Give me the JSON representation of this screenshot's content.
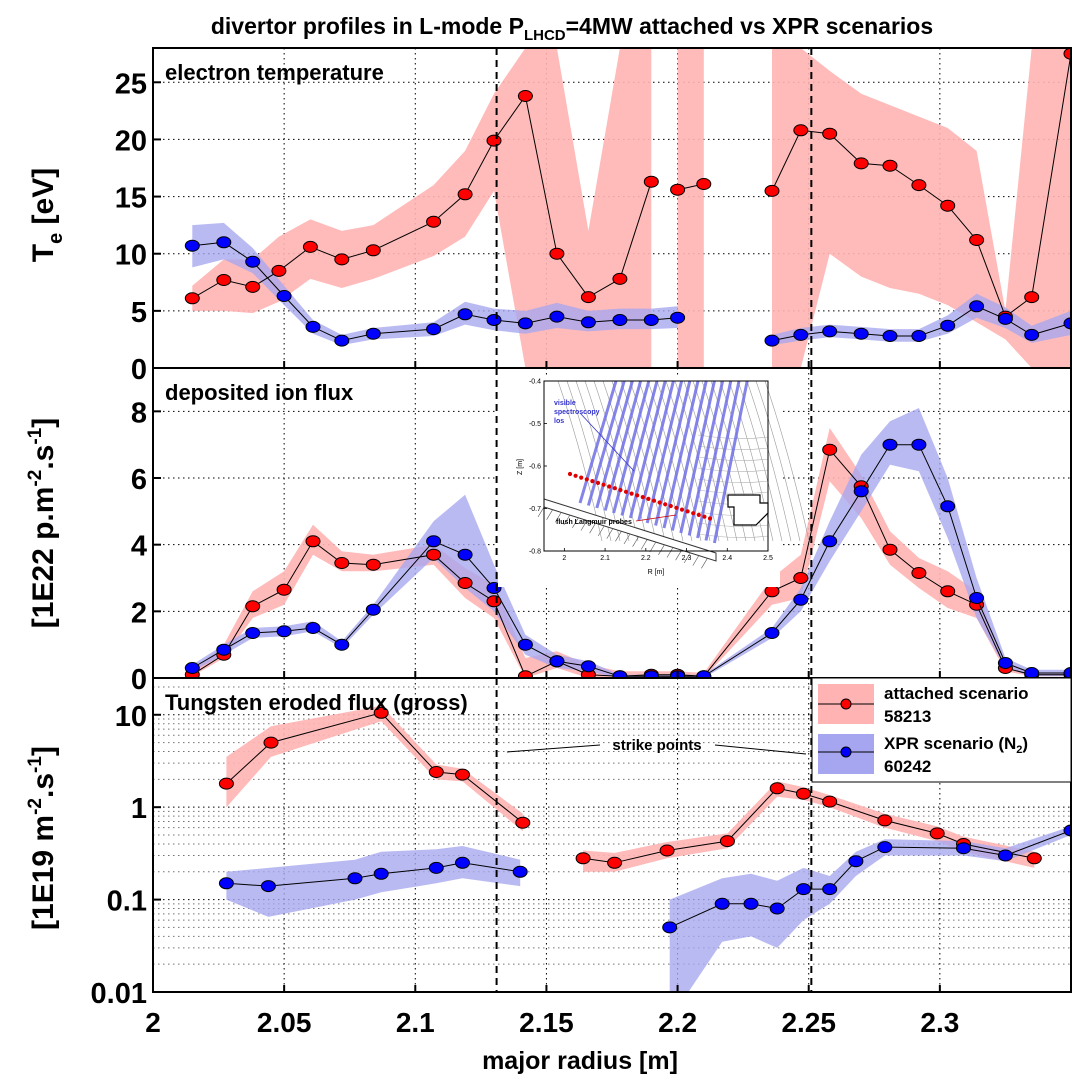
{
  "chart_data": {
    "type": "line",
    "title": {
      "pre": "divertor profiles in L-mode P",
      "sub": "LHCD",
      "post": "=4MW  attached vs XPR scenarios"
    },
    "xlabel": "major radius [m]",
    "xlim": [
      2.0,
      2.35
    ],
    "xticks": [
      2,
      2.05,
      2.1,
      2.15,
      2.2,
      2.25,
      2.3
    ],
    "xtick_labels": [
      "2",
      "2.05",
      "2.1",
      "2.15",
      "2.2",
      "2.25",
      "2.3"
    ],
    "strike_points": [
      2.131,
      2.251
    ],
    "colors": {
      "attached": "#ff0000",
      "attached_band": "#ffb3b3",
      "xpr": "#0000ff",
      "xpr_band": "#a6a6f0"
    },
    "legend": {
      "placement": "top-right of bottom panel",
      "entries": [
        {
          "label_line1": "attached scenario",
          "label_line2": "58213"
        },
        {
          "label_line1_pre": "XPR scenario (N",
          "label_line1_sub": "2",
          "label_line1_post": ")",
          "label_line2": "60242"
        }
      ]
    },
    "panels": [
      {
        "id": "te",
        "label": "electron temperature",
        "ylabel": {
          "main": "T",
          "sub": "e",
          "rest": " [eV]"
        },
        "scale": "linear",
        "ylim": [
          0,
          28
        ],
        "yticks": [
          0,
          5,
          10,
          15,
          20,
          25
        ],
        "ytick_labels": [
          "0",
          "5",
          "10",
          "15",
          "20",
          "25"
        ],
        "series": [
          {
            "key": "attached",
            "segments": [
              {
                "x": [
                  2.015,
                  2.027,
                  2.038,
                  2.048,
                  2.06,
                  2.072,
                  2.084,
                  2.107,
                  2.119,
                  2.13,
                  2.142,
                  2.154,
                  2.166,
                  2.178,
                  2.19
                ],
                "y": [
                  6.1,
                  7.7,
                  7.1,
                  8.5,
                  10.6,
                  9.5,
                  10.3,
                  12.8,
                  15.2,
                  19.9,
                  23.8,
                  10.0,
                  6.2,
                  7.8,
                  16.3
                ],
                "lo": [
                  5.0,
                  5.0,
                  4.8,
                  5.8,
                  7.8,
                  7.0,
                  7.8,
                  9.8,
                  11.5,
                  15.5,
                  0,
                  0,
                  0,
                  0,
                  0
                ],
                "hi": [
                  7.2,
                  9.5,
                  9.5,
                  11.5,
                  13.0,
                  12.0,
                  12.5,
                  16.0,
                  19.0,
                  24.0,
                  28,
                  28,
                  12,
                  28,
                  28
                ]
              },
              {
                "x": [
                  2.2,
                  2.21
                ],
                "y": [
                  15.6,
                  16.1
                ],
                "lo": [
                  0,
                  0
                ],
                "hi": [
                  28,
                  28
                ]
              },
              {
                "x": [
                  2.236,
                  2.247,
                  2.258,
                  2.27,
                  2.281,
                  2.292,
                  2.303,
                  2.314,
                  2.325,
                  2.335,
                  2.35
                ],
                "y": [
                  15.5,
                  20.8,
                  20.5,
                  17.9,
                  17.7,
                  16.0,
                  14.2,
                  11.2,
                  4.5,
                  6.2,
                  27.5
                ],
                "lo": [
                  0,
                  0,
                  10.0,
                  8.0,
                  7.0,
                  6.5,
                  5.5,
                  4.0,
                  2.5,
                  0,
                  0
                ],
                "hi": [
                  28,
                  28,
                  26.0,
                  24.0,
                  23.0,
                  22.0,
                  21.0,
                  19.0,
                  5.0,
                  28,
                  28
                ]
              }
            ]
          },
          {
            "key": "xpr",
            "segments": [
              {
                "x": [
                  2.015,
                  2.027,
                  2.038,
                  2.05,
                  2.061,
                  2.072,
                  2.084,
                  2.107,
                  2.119,
                  2.13,
                  2.142,
                  2.154,
                  2.166,
                  2.178,
                  2.19,
                  2.2
                ],
                "y": [
                  10.7,
                  11.0,
                  9.3,
                  6.3,
                  3.6,
                  2.4,
                  3.0,
                  3.4,
                  4.7,
                  4.2,
                  3.9,
                  4.5,
                  4.0,
                  4.2,
                  4.2,
                  4.4
                ],
                "lo": [
                  8.8,
                  9.5,
                  8.3,
                  5.5,
                  3.0,
                  2.0,
                  2.5,
                  2.8,
                  3.8,
                  3.3,
                  3.0,
                  3.5,
                  3.2,
                  3.4,
                  3.4,
                  3.5
                ],
                "hi": [
                  12.5,
                  12.7,
                  10.5,
                  7.2,
                  4.2,
                  2.9,
                  3.5,
                  4.0,
                  5.8,
                  5.2,
                  5.0,
                  5.7,
                  5.0,
                  5.2,
                  5.2,
                  5.4
                ]
              },
              {
                "x": [
                  2.236,
                  2.247,
                  2.258,
                  2.27,
                  2.281,
                  2.292,
                  2.303,
                  2.314,
                  2.325,
                  2.335,
                  2.35
                ],
                "y": [
                  2.4,
                  2.9,
                  3.2,
                  3.0,
                  2.8,
                  2.8,
                  3.7,
                  5.4,
                  4.3,
                  2.9,
                  3.9
                ],
                "lo": [
                  2.0,
                  2.4,
                  2.7,
                  2.5,
                  2.3,
                  2.3,
                  3.0,
                  4.4,
                  3.5,
                  2.2,
                  2.9
                ],
                "hi": [
                  2.9,
                  3.5,
                  3.8,
                  3.6,
                  3.4,
                  3.4,
                  4.6,
                  6.5,
                  5.3,
                  3.7,
                  5.0
                ]
              }
            ]
          }
        ]
      },
      {
        "id": "flux",
        "label": "deposited ion flux",
        "ylabel": {
          "pre": "[1E22 p.m",
          "sup1": "-2",
          "mid": ".s",
          "sup2": "-1",
          "post": "]"
        },
        "scale": "linear",
        "ylim": [
          0,
          9.3
        ],
        "yticks": [
          0,
          2,
          4,
          6,
          8
        ],
        "ytick_labels": [
          "0",
          "2",
          "4",
          "6",
          "8"
        ],
        "series": [
          {
            "key": "attached",
            "segments": [
              {
                "x": [
                  2.015,
                  2.027,
                  2.038,
                  2.05,
                  2.061,
                  2.072,
                  2.084,
                  2.107,
                  2.119,
                  2.13,
                  2.142,
                  2.154,
                  2.166,
                  2.178,
                  2.19,
                  2.2,
                  2.21,
                  2.236,
                  2.247,
                  2.258,
                  2.27,
                  2.281,
                  2.292,
                  2.303,
                  2.314,
                  2.325,
                  2.335,
                  2.35
                ],
                "y": [
                  0.1,
                  0.7,
                  2.15,
                  2.65,
                  4.1,
                  3.45,
                  3.4,
                  3.7,
                  2.85,
                  2.3,
                  0.05,
                  0.5,
                  0.1,
                  0.05,
                  0.1,
                  0.1,
                  0.05,
                  2.6,
                  3.0,
                  6.85,
                  5.75,
                  3.85,
                  3.15,
                  2.6,
                  2.2,
                  0.3,
                  0.1,
                  0.1
                ],
                "lo": [
                  0.05,
                  0.6,
                  1.8,
                  2.2,
                  3.7,
                  3.2,
                  3.2,
                  3.4,
                  2.4,
                  1.8,
                  0,
                  0.3,
                  0,
                  0,
                  0,
                  0,
                  0,
                  2.2,
                  2.4,
                  5.9,
                  4.8,
                  3.4,
                  2.7,
                  2.1,
                  1.8,
                  0.2,
                  0.05,
                  0.05
                ],
                "hi": [
                  0.2,
                  1.0,
                  2.6,
                  3.2,
                  4.6,
                  3.8,
                  3.7,
                  4.0,
                  3.3,
                  2.8,
                  0.6,
                  0.8,
                  0.4,
                  0.2,
                  0.2,
                  0.2,
                  0.15,
                  3.0,
                  3.7,
                  7.5,
                  6.1,
                  4.4,
                  3.6,
                  3.2,
                  2.6,
                  0.4,
                  0.15,
                  0.15
                ]
              }
            ]
          },
          {
            "key": "xpr",
            "segments": [
              {
                "x": [
                  2.015,
                  2.027,
                  2.038,
                  2.05,
                  2.061,
                  2.072,
                  2.084,
                  2.107,
                  2.119,
                  2.13,
                  2.142,
                  2.154,
                  2.166,
                  2.178,
                  2.19,
                  2.2,
                  2.21,
                  2.236,
                  2.247,
                  2.258,
                  2.27,
                  2.281,
                  2.292,
                  2.303,
                  2.314,
                  2.325,
                  2.335,
                  2.35
                ],
                "y": [
                  0.3,
                  0.85,
                  1.35,
                  1.4,
                  1.5,
                  1.0,
                  2.05,
                  4.1,
                  3.7,
                  2.7,
                  1.0,
                  0.5,
                  0.35,
                  0.05,
                  0.05,
                  0.05,
                  0.05,
                  1.35,
                  2.35,
                  4.1,
                  5.6,
                  7.0,
                  7.0,
                  5.15,
                  2.4,
                  0.45,
                  0.15,
                  0.15
                ],
                "lo": [
                  0.2,
                  0.7,
                  1.2,
                  1.25,
                  1.4,
                  0.9,
                  1.9,
                  3.6,
                  2.7,
                  2.0,
                  0.7,
                  0.3,
                  0.2,
                  0,
                  0,
                  0,
                  0,
                  1.2,
                  2.0,
                  3.5,
                  5.0,
                  6.4,
                  6.2,
                  4.2,
                  1.8,
                  0.3,
                  0.05,
                  0.05
                ],
                "hi": [
                  0.4,
                  1.0,
                  1.5,
                  1.55,
                  1.7,
                  1.1,
                  2.2,
                  4.7,
                  5.5,
                  3.4,
                  1.3,
                  0.7,
                  0.5,
                  0.1,
                  0.1,
                  0.1,
                  0.1,
                  1.5,
                  2.7,
                  4.7,
                  6.7,
                  7.7,
                  8.1,
                  6.0,
                  3.0,
                  0.6,
                  0.25,
                  0.25
                ]
              }
            ]
          }
        ]
      },
      {
        "id": "tungsten",
        "label": "Tungsten eroded flux (gross)",
        "ylabel": {
          "pre": "[1E19 m",
          "sup1": "-2",
          "mid": ".s",
          "sup2": "-1",
          "post": "]"
        },
        "scale": "log",
        "ylim": [
          0.01,
          25
        ],
        "yticks": [
          0.01,
          0.1,
          1,
          10
        ],
        "ytick_labels": [
          "0.01",
          "0.1",
          "1",
          "10"
        ],
        "minor_grid": true,
        "series": [
          {
            "key": "attached",
            "segments": [
              {
                "x": [
                  2.028,
                  2.045,
                  2.087,
                  2.108,
                  2.118,
                  2.141
                ],
                "y": [
                  1.8,
                  5.0,
                  10.5,
                  2.4,
                  2.25,
                  0.68
                ],
                "lo": [
                  1.0,
                  3.5,
                  8.5,
                  2.0,
                  1.9,
                  0.55
                ],
                "hi": [
                  3.5,
                  7.5,
                  12.5,
                  2.9,
                  2.6,
                  0.85
                ]
              },
              {
                "x": [
                  2.164,
                  2.176,
                  2.196,
                  2.219,
                  2.238,
                  2.248,
                  2.258,
                  2.279,
                  2.299,
                  2.309,
                  2.336
                ],
                "y": [
                  0.28,
                  0.25,
                  0.34,
                  0.43,
                  1.6,
                  1.4,
                  1.15,
                  0.72,
                  0.52,
                  0.4,
                  0.28
                ],
                "lo": [
                  0.2,
                  0.2,
                  0.28,
                  0.36,
                  1.3,
                  1.2,
                  1.0,
                  0.6,
                  0.43,
                  0.33,
                  0.22
                ],
                "hi": [
                  0.34,
                  0.32,
                  0.42,
                  0.52,
                  1.9,
                  1.65,
                  1.35,
                  0.85,
                  0.62,
                  0.48,
                  0.33
                ]
              }
            ]
          },
          {
            "key": "xpr",
            "segments": [
              {
                "x": [
                  2.028,
                  2.044,
                  2.077,
                  2.087,
                  2.108,
                  2.118,
                  2.14
                ],
                "y": [
                  0.15,
                  0.14,
                  0.17,
                  0.19,
                  0.22,
                  0.25,
                  0.2
                ],
                "lo": [
                  0.1,
                  0.065,
                  0.1,
                  0.12,
                  0.15,
                  0.17,
                  0.14
                ],
                "hi": [
                  0.2,
                  0.22,
                  0.27,
                  0.33,
                  0.35,
                  0.38,
                  0.27
                ]
              },
              {
                "x": [
                  2.197,
                  2.217,
                  2.228,
                  2.238,
                  2.248,
                  2.258,
                  2.268,
                  2.279,
                  2.309,
                  2.325,
                  2.35
                ],
                "y": [
                  0.05,
                  0.09,
                  0.09,
                  0.08,
                  0.13,
                  0.13,
                  0.26,
                  0.37,
                  0.36,
                  0.3,
                  0.56
                ],
                "lo": [
                  0.005,
                  0.035,
                  0.04,
                  0.03,
                  0.06,
                  0.09,
                  0.18,
                  0.3,
                  0.3,
                  0.26,
                  0.5
                ],
                "hi": [
                  0.1,
                  0.17,
                  0.19,
                  0.16,
                  0.22,
                  0.18,
                  0.33,
                  0.45,
                  0.43,
                  0.36,
                  0.62
                ]
              }
            ]
          }
        ]
      }
    ],
    "annotations": {
      "strike_points": "strike points"
    },
    "inset": {
      "type": "diagram",
      "xlabel": "R [m]",
      "ylabel": "Z [m]",
      "xlim": [
        1.95,
        2.5
      ],
      "ylim": [
        -0.8,
        -0.4
      ],
      "xtick_labels": [
        "2",
        "2.1",
        "2.2",
        "2.3",
        "2.4",
        "2.5"
      ],
      "ytick_labels": [
        "-0.4",
        "-0.5",
        "-0.6",
        "-0.7",
        "-0.8"
      ],
      "label_los": [
        "visible",
        "spectroscopy",
        "los"
      ],
      "label_probes": "flush Langmuir probes"
    }
  }
}
